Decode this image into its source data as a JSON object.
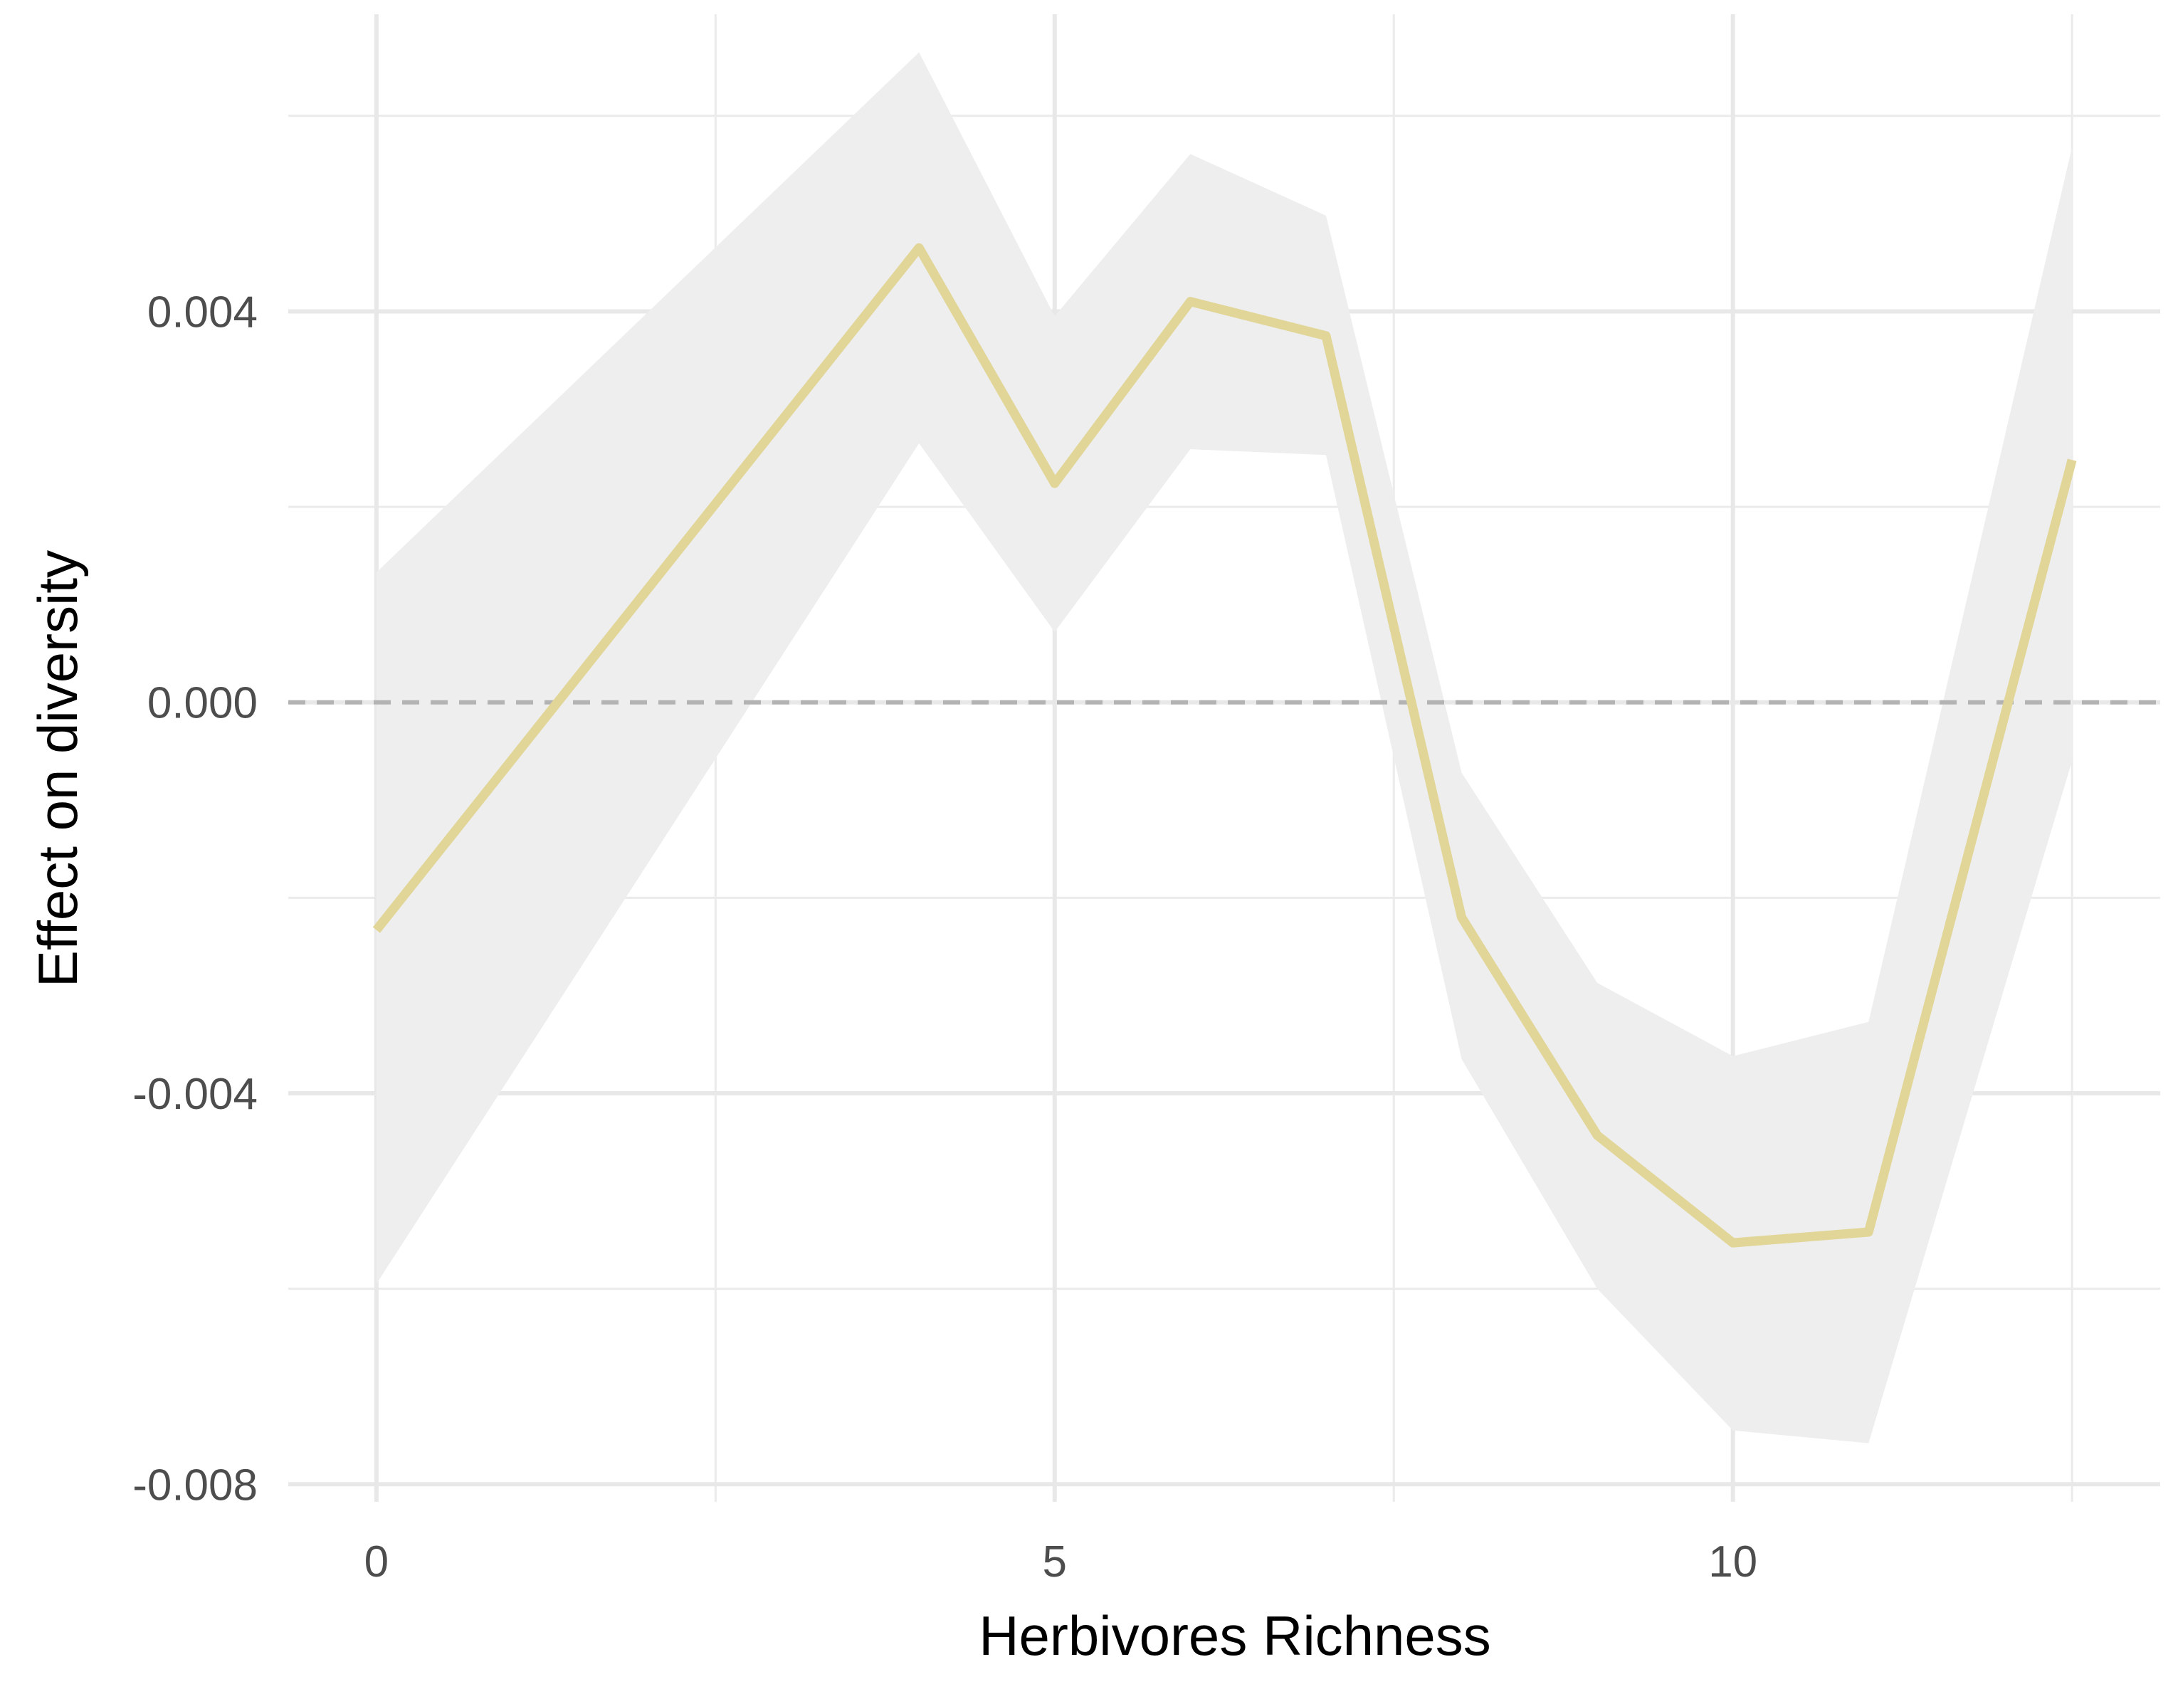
{
  "chart_data": {
    "type": "line",
    "title": "",
    "xlabel": "Herbivores Richness",
    "ylabel": "Effect on diversity",
    "xlim": [
      -0.65,
      13.15
    ],
    "ylim": [
      -0.00818,
      0.00704
    ],
    "x_ticks": [
      0,
      5,
      10
    ],
    "x_tick_labels": [
      "0",
      "5",
      "10"
    ],
    "x_minor_ticks": [
      2.5,
      7.5,
      12.5
    ],
    "y_ticks": [
      -0.008,
      -0.004,
      0.0,
      0.004
    ],
    "y_tick_labels": [
      "-0.008",
      "-0.004",
      "0.000",
      "0.004"
    ],
    "y_minor_ticks": [
      -0.006,
      -0.002,
      0.002,
      0.006
    ],
    "grid": true,
    "legend": "none",
    "reference_line": {
      "y": 0,
      "style": "dashed",
      "color": "#b3b3b3"
    },
    "series": [
      {
        "x": [
          0,
          4,
          5,
          6,
          7,
          8,
          9,
          10,
          11,
          12.5
        ],
        "y": [
          -0.00233,
          0.00465,
          0.00224,
          0.0041,
          0.00375,
          -0.0022,
          -0.00443,
          -0.00553,
          -0.00542,
          0.00248
        ],
        "lower": [
          -0.00595,
          0.00265,
          0.00072,
          0.00259,
          0.00253,
          -0.00365,
          -0.006,
          -0.00745,
          -0.00758,
          -0.0006
        ],
        "upper": [
          0.00133,
          0.00665,
          0.00395,
          0.00561,
          0.00498,
          -0.00072,
          -0.00287,
          -0.00362,
          -0.00327,
          0.00568
        ],
        "line_color": "#e1d698",
        "band_color": "#eeeeee"
      }
    ]
  }
}
